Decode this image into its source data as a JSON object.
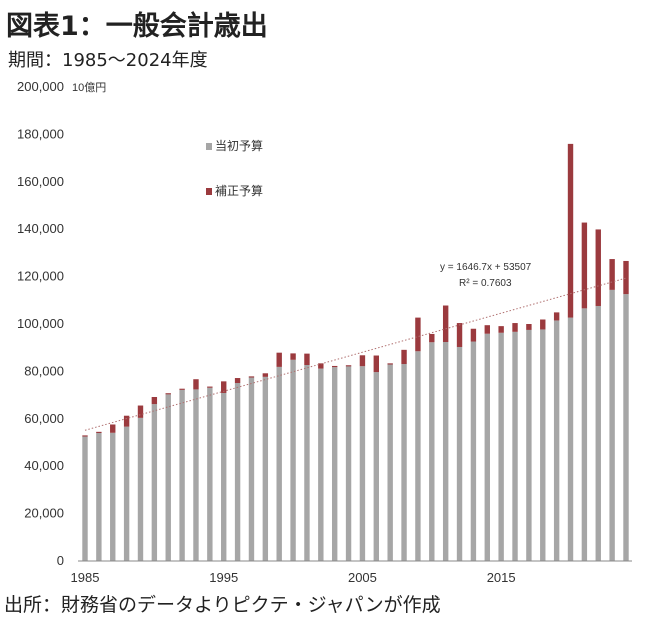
{
  "header": {
    "title": "図表1：一般会計歳出",
    "subtitle": "期間：1985～2024年度"
  },
  "footer": {
    "source": "出所：財務省のデータよりピクテ・ジャパンが作成"
  },
  "chart_data": {
    "type": "bar",
    "stacked": true,
    "unit_label": "10億円",
    "ylim": [
      0,
      200000
    ],
    "yticks": [
      0,
      20000,
      40000,
      60000,
      80000,
      100000,
      120000,
      140000,
      160000,
      180000,
      200000
    ],
    "ytick_labels": [
      "0",
      "20,000",
      "40,000",
      "60,000",
      "80,000",
      "100,000",
      "120,000",
      "140,000",
      "160,000",
      "180,000",
      "200,000"
    ],
    "xtick_labels": [
      "1985",
      "1995",
      "2005",
      "2015"
    ],
    "categories": [
      1985,
      1986,
      1987,
      1988,
      1989,
      1990,
      1991,
      1992,
      1993,
      1994,
      1995,
      1996,
      1997,
      1998,
      1999,
      2000,
      2001,
      2002,
      2003,
      2004,
      2005,
      2006,
      2007,
      2008,
      2009,
      2010,
      2011,
      2012,
      2013,
      2014,
      2015,
      2016,
      2017,
      2018,
      2019,
      2020,
      2021,
      2022,
      2023,
      2024
    ],
    "series": [
      {
        "name": "当初予算",
        "color": "#a6a6a6",
        "values": [
          52500,
          54000,
          54100,
          56700,
          60400,
          66200,
          70300,
          72200,
          72400,
          73100,
          70900,
          75100,
          77400,
          77700,
          81900,
          84900,
          82700,
          81200,
          81800,
          82100,
          82200,
          79700,
          82900,
          83100,
          88500,
          92300,
          92400,
          90300,
          92600,
          95900,
          96300,
          96700,
          97500,
          97700,
          101500,
          102700,
          106600,
          107600,
          114400,
          112600
        ]
      },
      {
        "name": "補正予算",
        "color": "#9b3a3e",
        "values": [
          500,
          500,
          3500,
          4600,
          5200,
          3000,
          500,
          500,
          4300,
          500,
          4900,
          2100,
          500,
          1500,
          6000,
          2700,
          4800,
          2200,
          500,
          500,
          4600,
          7000,
          500,
          6000,
          14200,
          3500,
          15400,
          10100,
          5400,
          3600,
          2800,
          3700,
          2500,
          4200,
          3400,
          73300,
          36200,
          32300,
          13000,
          14000
        ]
      }
    ],
    "trendline": {
      "equation": "y = 1646.7x + 53507",
      "r_squared": "R² = 0.7603",
      "slope": 1646.7,
      "intercept": 53507,
      "style": "dotted"
    },
    "legend_position": "upper-left inside plot",
    "grid": false
  }
}
